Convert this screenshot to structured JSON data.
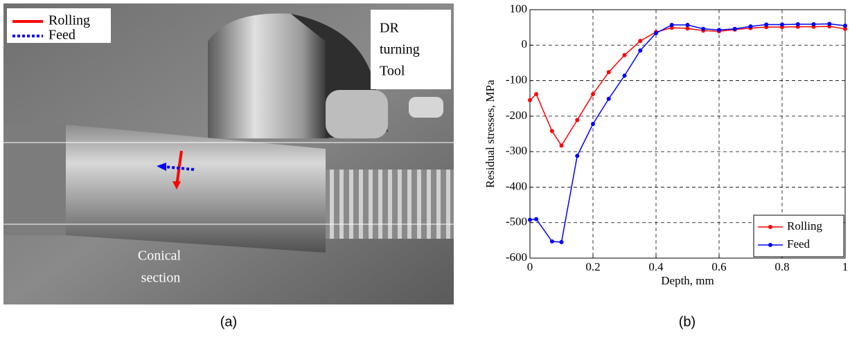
{
  "photo": {
    "legend": [
      "Rolling",
      "Feed"
    ],
    "tool_label": [
      "DR",
      "turning",
      "Tool"
    ],
    "section_label": [
      "Conical",
      "section"
    ]
  },
  "captions": [
    "(a)",
    "(b)"
  ],
  "chart_data": {
    "type": "line",
    "xlabel": "Depth, mm",
    "ylabel": "Residual stresses, MPa",
    "x": [
      0,
      0.02,
      0.07,
      0.1,
      0.15,
      0.2,
      0.25,
      0.3,
      0.35,
      0.4,
      0.45,
      0.5,
      0.55,
      0.6,
      0.65,
      0.7,
      0.75,
      0.8,
      0.85,
      0.9,
      0.95,
      1
    ],
    "series": [
      {
        "name": "Rolling",
        "color": "#ff0000",
        "values": [
          -155,
          -138,
          -242,
          -283,
          -211,
          -138,
          -76,
          -28,
          12,
          37,
          49,
          47,
          41,
          39,
          44,
          48,
          51,
          51,
          52,
          52,
          53,
          46
        ]
      },
      {
        "name": "Feed",
        "color": "#0000ff",
        "values": [
          -492,
          -490,
          -553,
          -555,
          -312,
          -222,
          -151,
          -86,
          -15,
          34,
          57,
          57,
          46,
          43,
          46,
          53,
          58,
          58,
          59,
          59,
          60,
          55
        ]
      }
    ],
    "xlim": [
      0,
      1
    ],
    "xticks": [
      0,
      0.2,
      0.4,
      0.6,
      0.8,
      1
    ],
    "ylim": [
      -600,
      100
    ],
    "yticks": [
      -600,
      -500,
      -400,
      -300,
      -200,
      -100,
      0,
      100
    ],
    "grid": true,
    "legend": "lower right"
  }
}
